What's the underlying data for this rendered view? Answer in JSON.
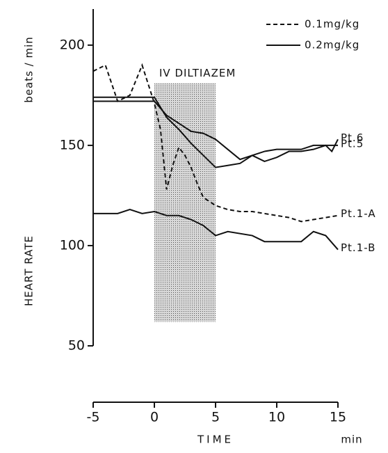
{
  "chart_data": {
    "type": "line",
    "y_label": "HEART RATE",
    "y_unit": "beats / min",
    "x_label": "TIME",
    "x_unit": "min",
    "annotation": "IV DILTIAZEM",
    "shade": {
      "x": [
        0,
        5
      ],
      "y": [
        62,
        181
      ]
    },
    "xlim": [
      -5,
      15
    ],
    "ylim": [
      50,
      218
    ],
    "xticks": [
      -5,
      0,
      5,
      10,
      15
    ],
    "yticks": [
      50,
      100,
      150,
      200
    ],
    "legend": [
      {
        "label": "0.1mg/kg",
        "dashed": true
      },
      {
        "label": "0.2mg/kg",
        "dashed": false
      }
    ],
    "series": [
      {
        "name": "Pt.6",
        "color": "#111111",
        "dashed": false,
        "x": [
          -5,
          0,
          1,
          2,
          3,
          4,
          5,
          6,
          7,
          8,
          9,
          10,
          11,
          12,
          13,
          14,
          14.5,
          15
        ],
        "values": [
          172,
          172,
          165,
          161,
          157,
          156,
          153,
          148,
          143,
          145,
          147,
          148,
          148,
          148,
          150,
          150,
          147,
          153
        ]
      },
      {
        "name": "Pt.5",
        "color": "#111111",
        "dashed": false,
        "x": [
          -5,
          0,
          1,
          2,
          3,
          4,
          5,
          6,
          7,
          8,
          9,
          10,
          11,
          12,
          13,
          14,
          15
        ],
        "values": [
          174,
          174,
          164,
          158,
          151,
          145,
          139,
          140,
          141,
          145,
          142,
          144,
          147,
          147,
          148,
          150,
          150
        ]
      },
      {
        "name": "Pt.1-A",
        "color": "#111111",
        "dashed": true,
        "x": [
          -5,
          -4,
          -3,
          -2,
          -1,
          0,
          0.5,
          1,
          1.5,
          2,
          2.5,
          3,
          3.5,
          4,
          5,
          6,
          7,
          8,
          9,
          10,
          11,
          12,
          13,
          14,
          15
        ],
        "values": [
          187,
          190,
          172,
          175,
          190,
          171,
          158,
          128,
          140,
          149,
          145,
          139,
          131,
          124,
          120,
          118,
          117,
          117,
          116,
          115,
          114,
          112,
          113,
          114,
          115
        ]
      },
      {
        "name": "Pt.1-B",
        "color": "#111111",
        "dashed": false,
        "x": [
          -5,
          -3,
          -2,
          -1,
          0,
          1,
          2,
          3,
          4,
          5,
          6,
          8,
          9,
          10,
          11,
          12,
          13,
          14,
          15
        ],
        "values": [
          116,
          116,
          118,
          116,
          117,
          115,
          115,
          113,
          110,
          105,
          107,
          105,
          102,
          102,
          102,
          102,
          107,
          105,
          98
        ]
      }
    ]
  }
}
